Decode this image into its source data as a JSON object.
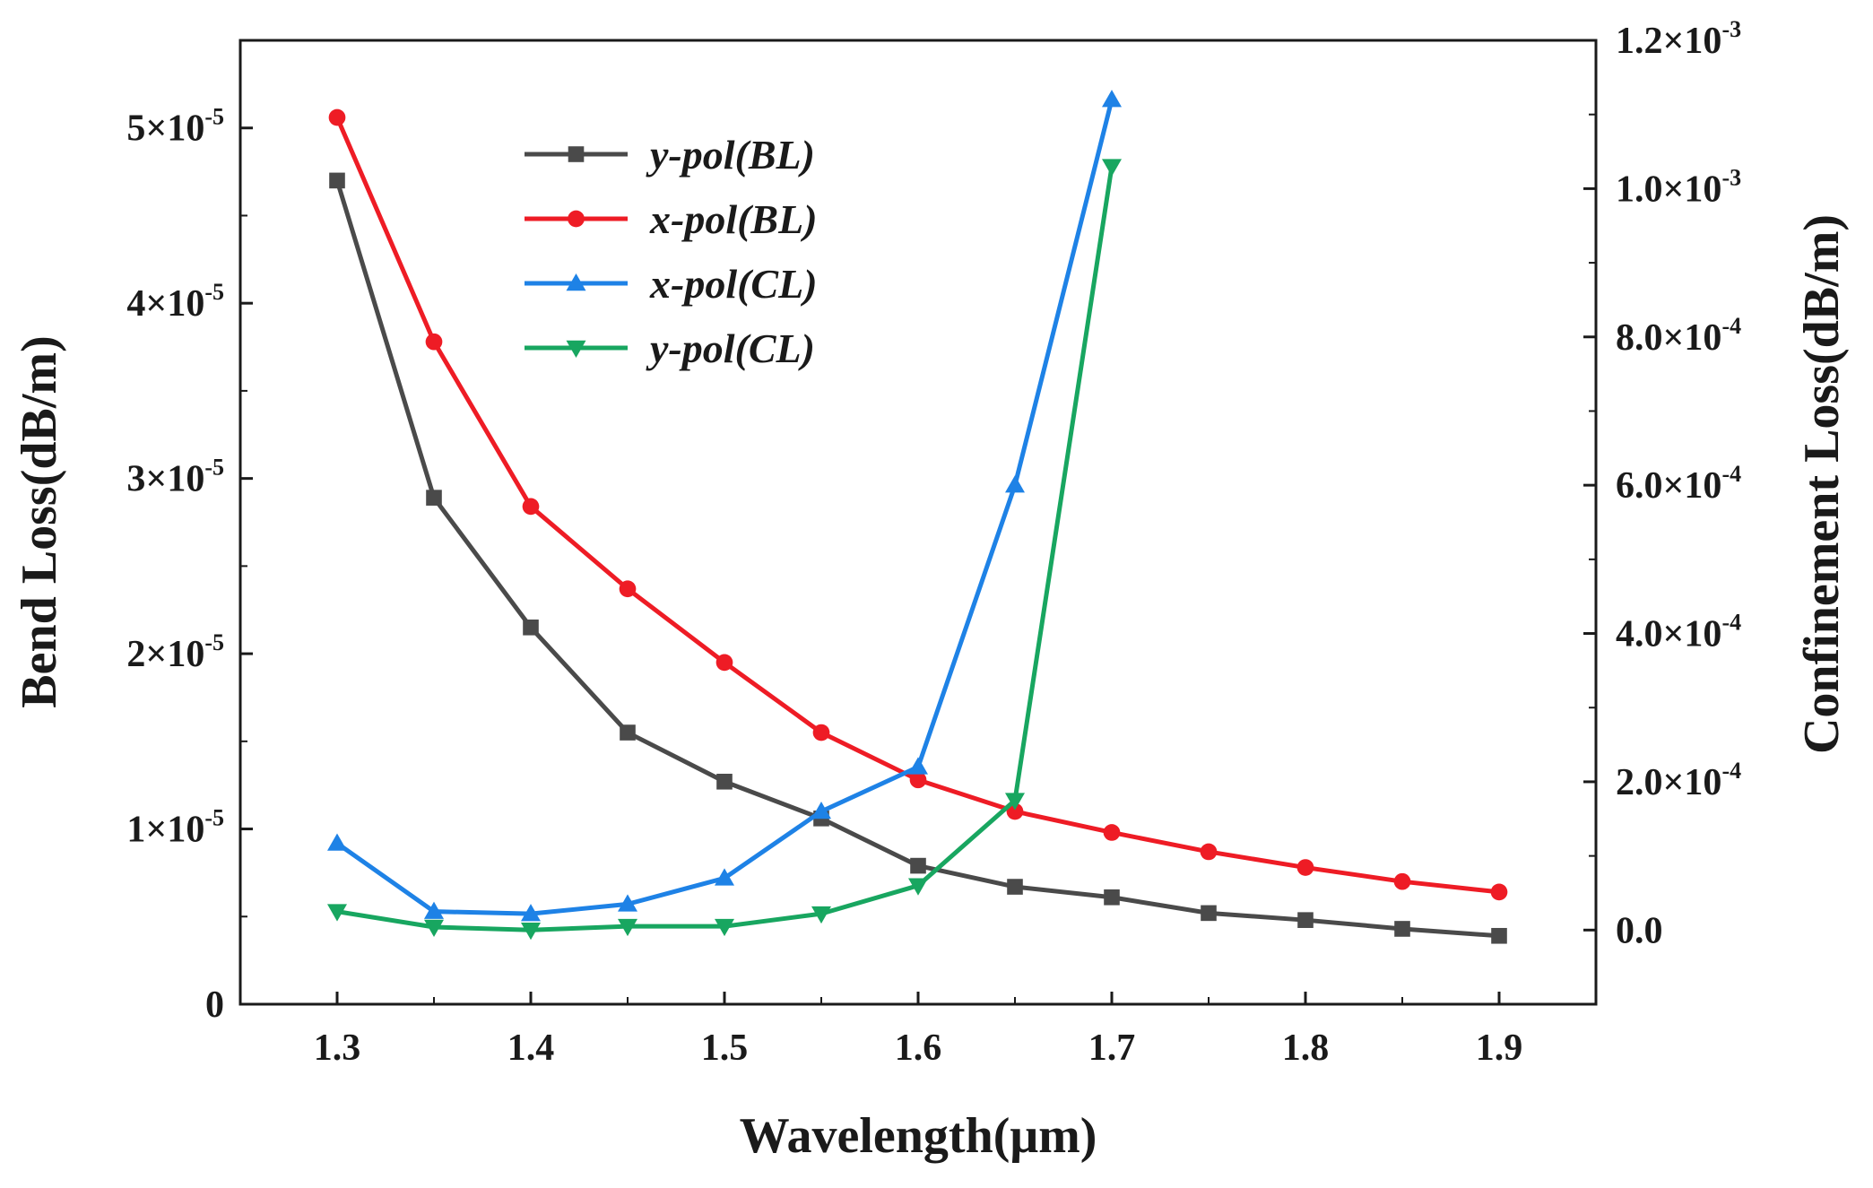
{
  "chart_data": {
    "type": "line",
    "x_label": "Wavelength(μm)",
    "y_label_left": "Bend Loss(dB/m)",
    "y_label_right": "Confinement Loss(dB/m)",
    "x_ticks": [
      "1.3",
      "1.4",
      "1.5",
      "1.6",
      "1.7",
      "1.8",
      "1.9"
    ],
    "x_tick_values": [
      1.3,
      1.4,
      1.5,
      1.6,
      1.7,
      1.8,
      1.9
    ],
    "xlim": [
      1.25,
      1.95
    ],
    "ylim_left": [
      0,
      5.5e-05
    ],
    "ylim_right": [
      -0.0001,
      0.0012
    ],
    "left_ticks": [
      {
        "value": 0,
        "mant": "0",
        "exp": ""
      },
      {
        "value": 1e-05,
        "mant": "1×10",
        "exp": "-5"
      },
      {
        "value": 2e-05,
        "mant": "2×10",
        "exp": "-5"
      },
      {
        "value": 3e-05,
        "mant": "3×10",
        "exp": "-5"
      },
      {
        "value": 4e-05,
        "mant": "4×10",
        "exp": "-5"
      },
      {
        "value": 5e-05,
        "mant": "5×10",
        "exp": "-5"
      }
    ],
    "right_ticks": [
      {
        "value": 0,
        "mant": "0.0",
        "exp": ""
      },
      {
        "value": 0.0002,
        "mant": "2.0×10",
        "exp": "-4"
      },
      {
        "value": 0.0004,
        "mant": "4.0×10",
        "exp": "-4"
      },
      {
        "value": 0.0006,
        "mant": "6.0×10",
        "exp": "-4"
      },
      {
        "value": 0.0008,
        "mant": "8.0×10",
        "exp": "-4"
      },
      {
        "value": 0.001,
        "mant": "1.0×10",
        "exp": "-3"
      },
      {
        "value": 0.0012,
        "mant": "1.2×10",
        "exp": "-3"
      }
    ],
    "series": [
      {
        "name": "y-pol(BL)",
        "axis": "left",
        "color": "#4a4a4a",
        "marker": "square",
        "x": [
          1.3,
          1.35,
          1.4,
          1.45,
          1.5,
          1.55,
          1.6,
          1.65,
          1.7,
          1.75,
          1.8,
          1.85,
          1.9
        ],
        "values": [
          4.7e-05,
          2.89e-05,
          2.15e-05,
          1.55e-05,
          1.27e-05,
          1.06e-05,
          7.9e-06,
          6.7e-06,
          6.1e-06,
          5.2e-06,
          4.8e-06,
          4.3e-06,
          3.9e-06
        ]
      },
      {
        "name": "x-pol(BL)",
        "axis": "left",
        "color": "#ee1c25",
        "marker": "circle",
        "x": [
          1.3,
          1.35,
          1.4,
          1.45,
          1.5,
          1.55,
          1.6,
          1.65,
          1.7,
          1.75,
          1.8,
          1.85,
          1.9
        ],
        "values": [
          5.06e-05,
          3.78e-05,
          2.84e-05,
          2.37e-05,
          1.95e-05,
          1.55e-05,
          1.28e-05,
          1.1e-05,
          9.8e-06,
          8.7e-06,
          7.8e-06,
          7e-06,
          6.4e-06
        ]
      },
      {
        "name": "x-pol(CL)",
        "axis": "right",
        "color": "#1e82e6",
        "marker": "triangle-up",
        "x": [
          1.3,
          1.35,
          1.4,
          1.45,
          1.5,
          1.55,
          1.6,
          1.65,
          1.7
        ],
        "values": [
          0.000117,
          2.5e-05,
          2.2e-05,
          3.5e-05,
          7e-05,
          0.00016,
          0.00022,
          0.0006,
          0.00112
        ]
      },
      {
        "name": "y-pol(CL)",
        "axis": "right",
        "color": "#18a660",
        "marker": "triangle-down",
        "x": [
          1.3,
          1.35,
          1.4,
          1.45,
          1.5,
          1.55,
          1.6,
          1.65,
          1.7
        ],
        "values": [
          2.5e-05,
          4e-06,
          0.0,
          5e-06,
          5e-06,
          2.2e-05,
          6e-05,
          0.000175,
          0.00103
        ]
      }
    ],
    "legend": {
      "position": "top-left",
      "entries": [
        "y-pol(BL)",
        "x-pol(BL)",
        "x-pol(CL)",
        "y-pol(CL)"
      ]
    }
  }
}
